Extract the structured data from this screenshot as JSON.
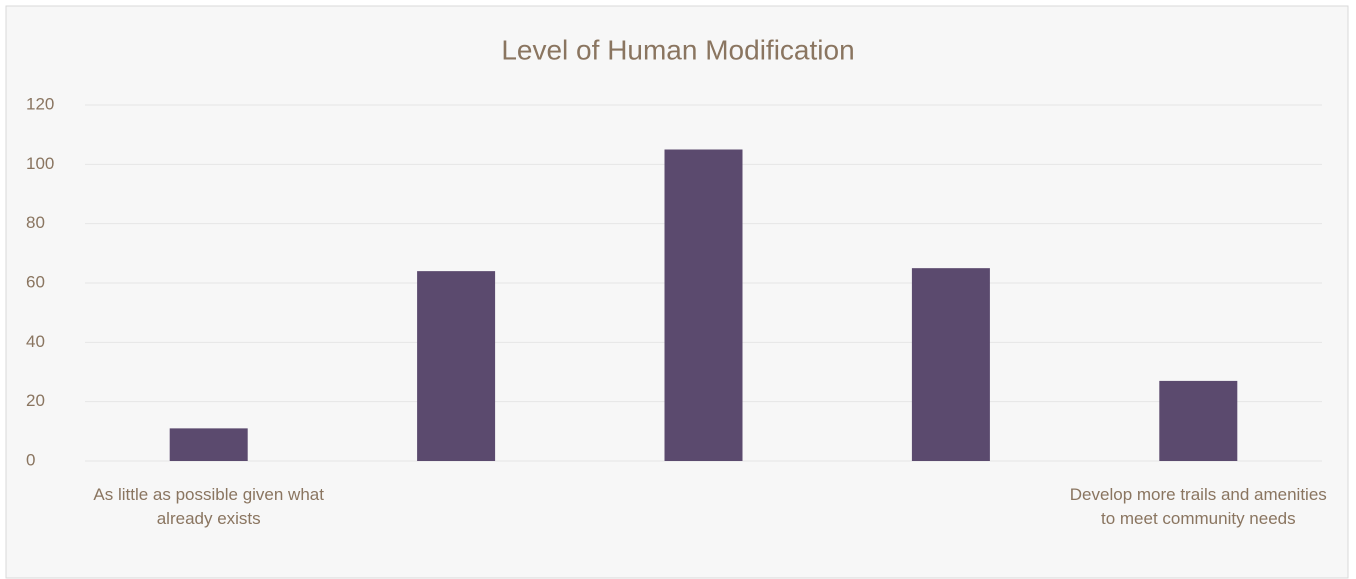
{
  "chart_data": {
    "type": "bar",
    "title": "Level of Human Modification",
    "categories": [
      "As little as possible given what already exists",
      null,
      null,
      null,
      "Develop more trails and amenities to meet community needs"
    ],
    "values": [
      11,
      64,
      105,
      65,
      27
    ],
    "color": "#5b4a6e",
    "ylim": [
      0,
      120
    ],
    "yticks": [
      0,
      20,
      40,
      60,
      80,
      100,
      120
    ],
    "grid": true
  }
}
